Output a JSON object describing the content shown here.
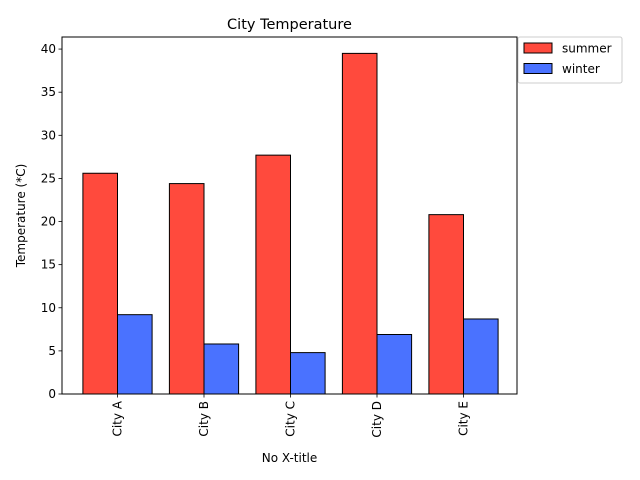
{
  "chart_data": {
    "type": "bar",
    "title": "City Temperature",
    "xlabel": "No X-title",
    "ylabel": "Temperature (*C)",
    "categories": [
      "City A",
      "City B",
      "City C",
      "City D",
      "City E"
    ],
    "series": [
      {
        "name": "summer",
        "values": [
          25.6,
          24.4,
          27.7,
          39.5,
          20.8
        ],
        "color": "#ff4a3d"
      },
      {
        "name": "winter",
        "values": [
          9.2,
          5.8,
          4.8,
          6.9,
          8.7
        ],
        "color": "#4a72ff"
      }
    ],
    "ylim": [
      0,
      41.4
    ],
    "yticks": [
      0,
      5,
      10,
      15,
      20,
      25,
      30,
      35,
      40
    ],
    "grid": false,
    "legend_position": "top-right outside"
  }
}
